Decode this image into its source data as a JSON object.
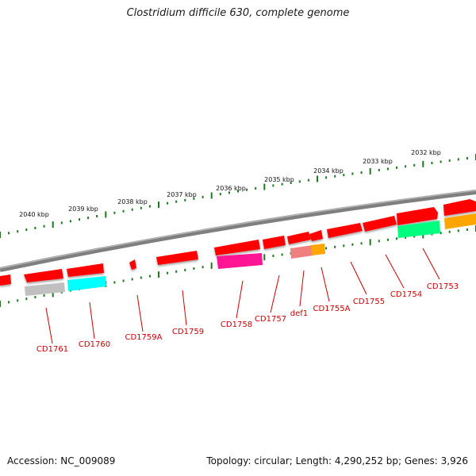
{
  "title": "Clostridium difficile 630, complete genome",
  "footer": {
    "accession": "Accession: NC_009089",
    "summary": "Topology: circular; Length: 4,290,252 bp; Genes: 3,926"
  },
  "scale_labels": [
    "2032 kbp",
    "2033 kbp",
    "2034 kbp",
    "2035 kbp",
    "2036 kbp",
    "2037 kbp",
    "2038 kbp",
    "2039 kbp",
    "2040 kbp"
  ],
  "gene_labels": [
    "CD1753",
    "CD1754",
    "CD1755",
    "CD1755A",
    "def1",
    "CD1757",
    "CD1758",
    "CD1759",
    "CD1759A",
    "CD1760",
    "CD1761"
  ],
  "colors": {
    "backbone": "#808080",
    "tick": "#1e7a1e",
    "gene": "#ff0000",
    "label": "#cc0000",
    "cog": [
      "#c0c0c0",
      "#00ffff",
      "#ff1493",
      "#f08080",
      "#ffa500",
      "#00ff7f"
    ]
  }
}
